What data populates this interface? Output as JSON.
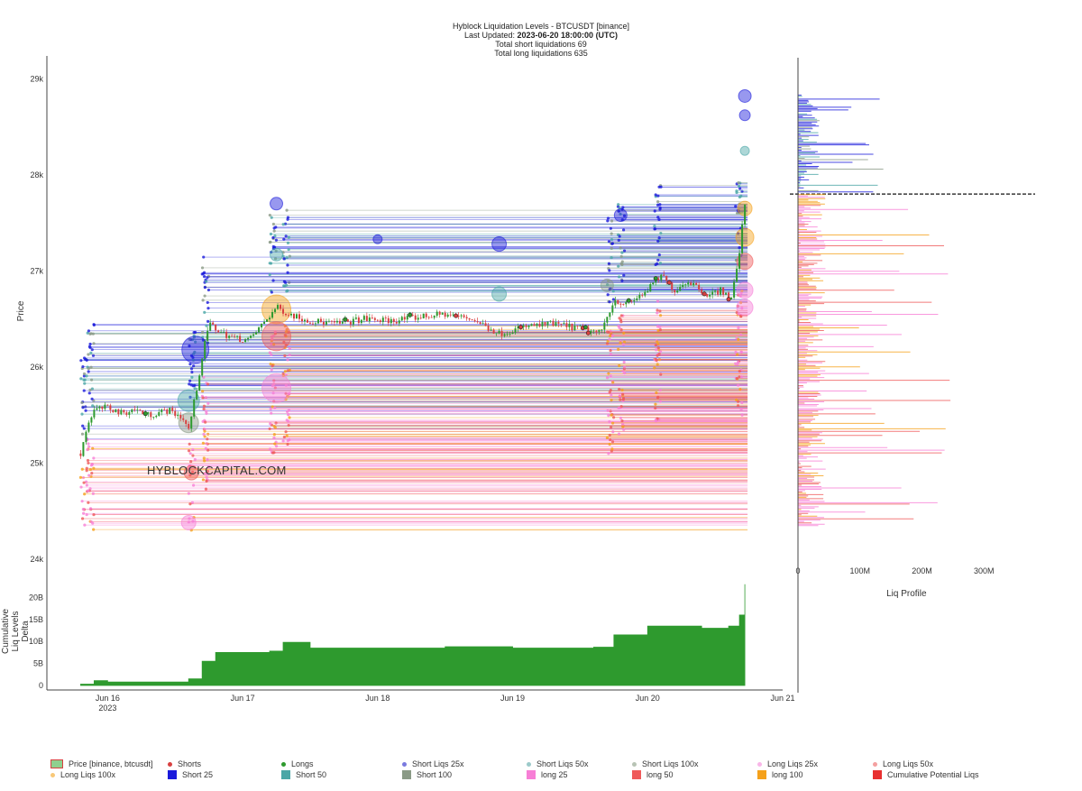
{
  "header": {
    "title": "Hyblock Liquidation Levels - BTCUSDT [binance]",
    "last_updated_label": "Last Updated:",
    "last_updated_value": "2023-06-20 18:00:00 (UTC)",
    "short_total": "Total short liquidations 69",
    "long_total": "Total long liquidations 635"
  },
  "watermark": "HYBLOCKCAPITAL.COM",
  "colors": {
    "short25": "#1a1adb",
    "short50": "#4aa6a6",
    "short100": "#8a9a86",
    "long25": "#f77fd6",
    "long50": "#ef5a5a",
    "long100": "#f5a11b",
    "delta": "#2e9a2e",
    "price_up": "#2e9a2e",
    "price_down": "#d84040"
  },
  "chart_data": [
    {
      "type": "line",
      "name": "price-liquidation-levels",
      "ylabel": "Price",
      "ylim": [
        24000,
        29200
      ],
      "yticks": [
        24000,
        25000,
        26000,
        27000,
        28000,
        29000
      ],
      "ytick_labels": [
        "24k",
        "25k",
        "26k",
        "27k",
        "28k",
        "29k"
      ],
      "xticks": [
        "Jun 16",
        "Jun 17",
        "Jun 18",
        "Jun 19",
        "Jun 20",
        "Jun 21"
      ],
      "x_sub_label": "2023",
      "xlim_days": [
        15.55,
        21.0
      ],
      "price_series": [
        {
          "day": 15.8,
          "price": 25100
        },
        {
          "day": 15.85,
          "price": 25400
        },
        {
          "day": 15.9,
          "price": 25550
        },
        {
          "day": 16.0,
          "price": 25580
        },
        {
          "day": 16.1,
          "price": 25520
        },
        {
          "day": 16.2,
          "price": 25560
        },
        {
          "day": 16.3,
          "price": 25500
        },
        {
          "day": 16.45,
          "price": 25550
        },
        {
          "day": 16.55,
          "price": 25480
        },
        {
          "day": 16.6,
          "price": 25350
        },
        {
          "day": 16.65,
          "price": 25700
        },
        {
          "day": 16.7,
          "price": 26100
        },
        {
          "day": 16.75,
          "price": 26450
        },
        {
          "day": 16.85,
          "price": 26350
        },
        {
          "day": 16.95,
          "price": 26300
        },
        {
          "day": 17.05,
          "price": 26280
        },
        {
          "day": 17.15,
          "price": 26450
        },
        {
          "day": 17.25,
          "price": 26620
        },
        {
          "day": 17.35,
          "price": 26550
        },
        {
          "day": 17.5,
          "price": 26480
        },
        {
          "day": 17.7,
          "price": 26450
        },
        {
          "day": 17.9,
          "price": 26500
        },
        {
          "day": 18.1,
          "price": 26480
        },
        {
          "day": 18.3,
          "price": 26520
        },
        {
          "day": 18.5,
          "price": 26550
        },
        {
          "day": 18.7,
          "price": 26500
        },
        {
          "day": 18.9,
          "price": 26350
        },
        {
          "day": 19.1,
          "price": 26420
        },
        {
          "day": 19.3,
          "price": 26450
        },
        {
          "day": 19.5,
          "price": 26400
        },
        {
          "day": 19.65,
          "price": 26350
        },
        {
          "day": 19.75,
          "price": 26700
        },
        {
          "day": 19.85,
          "price": 26650
        },
        {
          "day": 20.0,
          "price": 26800
        },
        {
          "day": 20.1,
          "price": 26950
        },
        {
          "day": 20.2,
          "price": 26800
        },
        {
          "day": 20.3,
          "price": 26900
        },
        {
          "day": 20.45,
          "price": 26750
        },
        {
          "day": 20.55,
          "price": 26800
        },
        {
          "day": 20.62,
          "price": 26700
        },
        {
          "day": 20.68,
          "price": 27200
        },
        {
          "day": 20.72,
          "price": 27700
        }
      ],
      "current_price": 27800
    },
    {
      "type": "area",
      "name": "cumulative-liq-levels-delta",
      "ylabel": "Cumulative Liq Levels Delta",
      "ylim": [
        0,
        25
      ],
      "yticks": [
        0,
        5,
        10,
        15,
        20
      ],
      "ytick_labels": [
        "0",
        "5B",
        "10B",
        "15B",
        "20B"
      ],
      "series": [
        {
          "day": 15.8,
          "value": 0.3
        },
        {
          "day": 15.9,
          "value": 1.1
        },
        {
          "day": 16.0,
          "value": 0.8
        },
        {
          "day": 16.6,
          "value": 1.5
        },
        {
          "day": 16.7,
          "value": 5.5
        },
        {
          "day": 16.8,
          "value": 7.5
        },
        {
          "day": 17.2,
          "value": 7.8
        },
        {
          "day": 17.3,
          "value": 9.8
        },
        {
          "day": 17.5,
          "value": 8.5
        },
        {
          "day": 18.0,
          "value": 8.5
        },
        {
          "day": 18.5,
          "value": 8.8
        },
        {
          "day": 19.0,
          "value": 8.5
        },
        {
          "day": 19.6,
          "value": 8.7
        },
        {
          "day": 19.75,
          "value": 11.5
        },
        {
          "day": 20.0,
          "value": 13.5
        },
        {
          "day": 20.4,
          "value": 13.0
        },
        {
          "day": 20.6,
          "value": 13.5
        },
        {
          "day": 20.68,
          "value": 16.0
        },
        {
          "day": 20.72,
          "value": 23.0
        }
      ]
    },
    {
      "type": "bar",
      "name": "liq-profile",
      "xlabel": "Liq Profile",
      "xlim": [
        0,
        400
      ],
      "xticks": [
        0,
        100,
        200,
        300
      ],
      "xtick_labels": [
        "0",
        "100M",
        "200M",
        "300M"
      ],
      "note_units": "M"
    }
  ],
  "legend": [
    {
      "label": "Price [binance, btcusdt]",
      "kind": "price"
    },
    {
      "label": "Shorts",
      "kind": "dot",
      "color": "#d84040"
    },
    {
      "label": "Longs",
      "kind": "dot",
      "color": "#2e9a2e"
    },
    {
      "label": "Short Liqs 25x",
      "kind": "dot",
      "color": "#7a7adf"
    },
    {
      "label": "Short Liqs 50x",
      "kind": "dot",
      "color": "#9ccaca"
    },
    {
      "label": "Short Liqs 100x",
      "kind": "dot",
      "color": "#b8c4b5"
    },
    {
      "label": "Long Liqs 25x",
      "kind": "dot",
      "color": "#f9b6e8"
    },
    {
      "label": "Long Liqs 50x",
      "kind": "dot",
      "color": "#f4a0a0"
    },
    {
      "label": "Long Liqs 100x",
      "kind": "dot",
      "color": "#f8c878"
    },
    {
      "label": "Short 25",
      "kind": "square",
      "color": "#1a1adb"
    },
    {
      "label": "Short 50",
      "kind": "square",
      "color": "#4aa6a6"
    },
    {
      "label": "Short 100",
      "kind": "square",
      "color": "#8a9a86"
    },
    {
      "label": "long 25",
      "kind": "square",
      "color": "#f77fd6"
    },
    {
      "label": "long 50",
      "kind": "square",
      "color": "#ef5a5a"
    },
    {
      "label": "long 100",
      "kind": "square",
      "color": "#f5a11b"
    },
    {
      "label": "Cumulative Potential Liqs",
      "kind": "square",
      "color": "#e83030"
    }
  ]
}
